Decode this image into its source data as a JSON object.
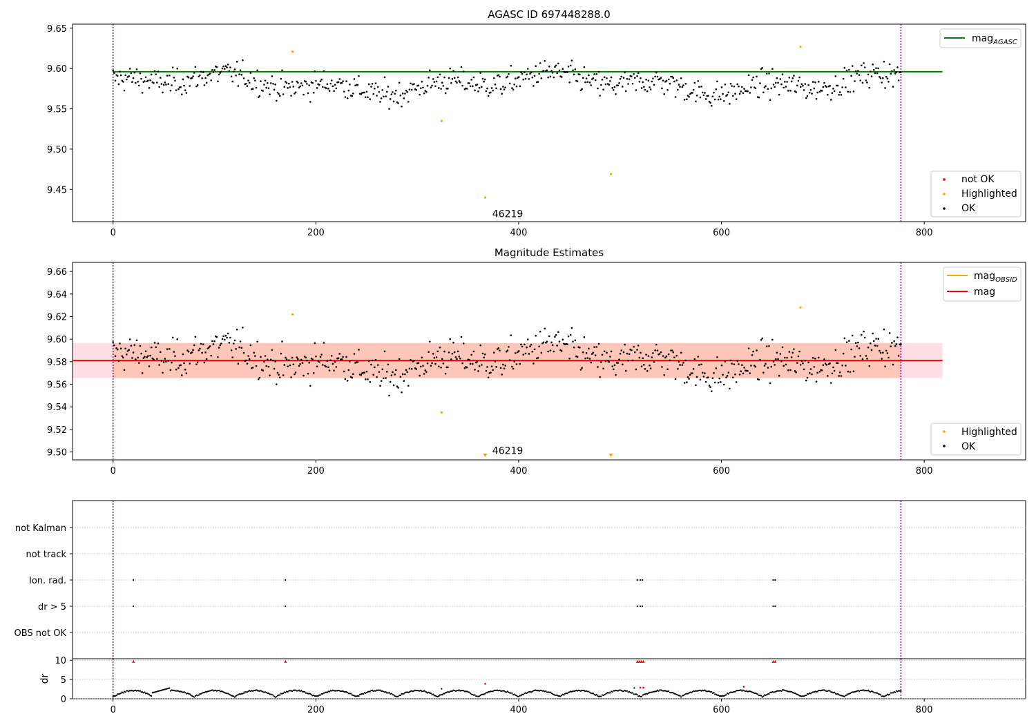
{
  "figure": {
    "panel1_title": "AGASC ID 697448288.0",
    "panel2_title": "Magnitude Estimates",
    "obsid_annotation": "46219"
  },
  "colors": {
    "ok": "#000000",
    "highlighted": "#ffa500",
    "not_ok": "#ff0000",
    "agasc_line": "#008000",
    "mag_line": "#ff0000",
    "obsid_line": "#ffa500",
    "band_outer": "#ffc0cb",
    "band_inner": "#ffa07a",
    "vline": "#800080",
    "grid": "#b0b0b0"
  },
  "chart_data": [
    {
      "type": "scatter",
      "title": "AGASC ID 697448288.0",
      "xlim": [
        -40,
        900
      ],
      "ylim": [
        9.41,
        9.655
      ],
      "xticks": [
        0,
        200,
        400,
        600,
        800
      ],
      "yticks": [
        9.45,
        9.5,
        9.55,
        9.6,
        9.65
      ],
      "vlines": [
        0,
        777
      ],
      "mag_agasc": 9.596,
      "line_x_range": [
        0,
        818
      ],
      "ok_stats": {
        "count": 700,
        "x_range": [
          0,
          777
        ],
        "y_mean": 9.581,
        "y_spread": 0.015
      },
      "highlighted_points": [
        {
          "x": 177,
          "y": 9.621
        },
        {
          "x": 324,
          "y": 9.535
        },
        {
          "x": 367,
          "y": 9.44
        },
        {
          "x": 491,
          "y": 9.469
        },
        {
          "x": 678,
          "y": 9.627
        }
      ],
      "annotation": {
        "text": "46219",
        "x": 374,
        "y": 9.42
      },
      "legend_top": [
        "mag_AGASC"
      ],
      "legend_top_position": "upper right",
      "legend_bottom": [
        "not OK",
        "Highlighted",
        "OK"
      ],
      "legend_bottom_position": "lower right"
    },
    {
      "type": "scatter",
      "title": "Magnitude Estimates",
      "xlim": [
        -40,
        900
      ],
      "ylim": [
        9.493,
        9.668
      ],
      "xticks": [
        0,
        200,
        400,
        600,
        800
      ],
      "yticks": [
        9.5,
        9.52,
        9.54,
        9.56,
        9.58,
        9.6,
        9.62,
        9.64,
        9.66
      ],
      "vlines": [
        0,
        777
      ],
      "mag": 9.581,
      "mag_band": [
        9.5655,
        9.5965
      ],
      "line_x_range": [
        -40,
        818
      ],
      "band_x_range": [
        -40,
        818
      ],
      "band_inner_x_range": [
        0,
        777
      ],
      "highlighted_points": [
        {
          "x": 177,
          "y": 9.622
        },
        {
          "x": 324,
          "y": 9.535
        },
        {
          "x": 678,
          "y": 9.628
        }
      ],
      "off_scale_markers": [
        {
          "x": 367
        },
        {
          "x": 491
        }
      ],
      "annotation": {
        "text": "46219",
        "x": 374,
        "y": 9.5
      },
      "legend_top": [
        "mag_OBSID",
        "mag"
      ],
      "legend_top_position": "upper right",
      "legend_bottom": [
        "Highlighted",
        "OK"
      ],
      "legend_bottom_position": "lower right"
    },
    {
      "type": "scatter",
      "xlim": [
        -40,
        900
      ],
      "categories": [
        "not Kalman",
        "not track",
        "Ion. rad.",
        "dr > 5",
        "OBS not OK"
      ],
      "vlines": [
        0,
        777
      ],
      "flags": {
        "Ion. rad.": [
          20,
          170,
          517,
          520,
          522,
          651,
          653
        ],
        "dr > 5": [
          20,
          170,
          517,
          520,
          522,
          651,
          653
        ]
      }
    },
    {
      "type": "scatter",
      "xlim": [
        -40,
        900
      ],
      "ylim": [
        0,
        10.4
      ],
      "yticks": [
        0,
        5,
        10
      ],
      "ylabel": "dr",
      "xticks": [
        0,
        200,
        400,
        600,
        800
      ],
      "vlines": [
        0,
        777
      ],
      "red_points": [
        {
          "x": 20,
          "y": 9.7
        },
        {
          "x": 170,
          "y": 9.7
        },
        {
          "x": 517,
          "y": 9.7
        },
        {
          "x": 519,
          "y": 9.7
        },
        {
          "x": 521,
          "y": 9.7
        },
        {
          "x": 523,
          "y": 9.7
        },
        {
          "x": 651,
          "y": 9.7
        },
        {
          "x": 653,
          "y": 9.7
        },
        {
          "x": 367,
          "y": 3.9
        },
        {
          "x": 520,
          "y": 2.9
        },
        {
          "x": 523,
          "y": 2.9
        },
        {
          "x": 622,
          "y": 3.1
        }
      ],
      "black_outliers": [
        {
          "x": 324,
          "y": 2.6
        },
        {
          "x": 514,
          "y": 2.8
        }
      ]
    }
  ]
}
